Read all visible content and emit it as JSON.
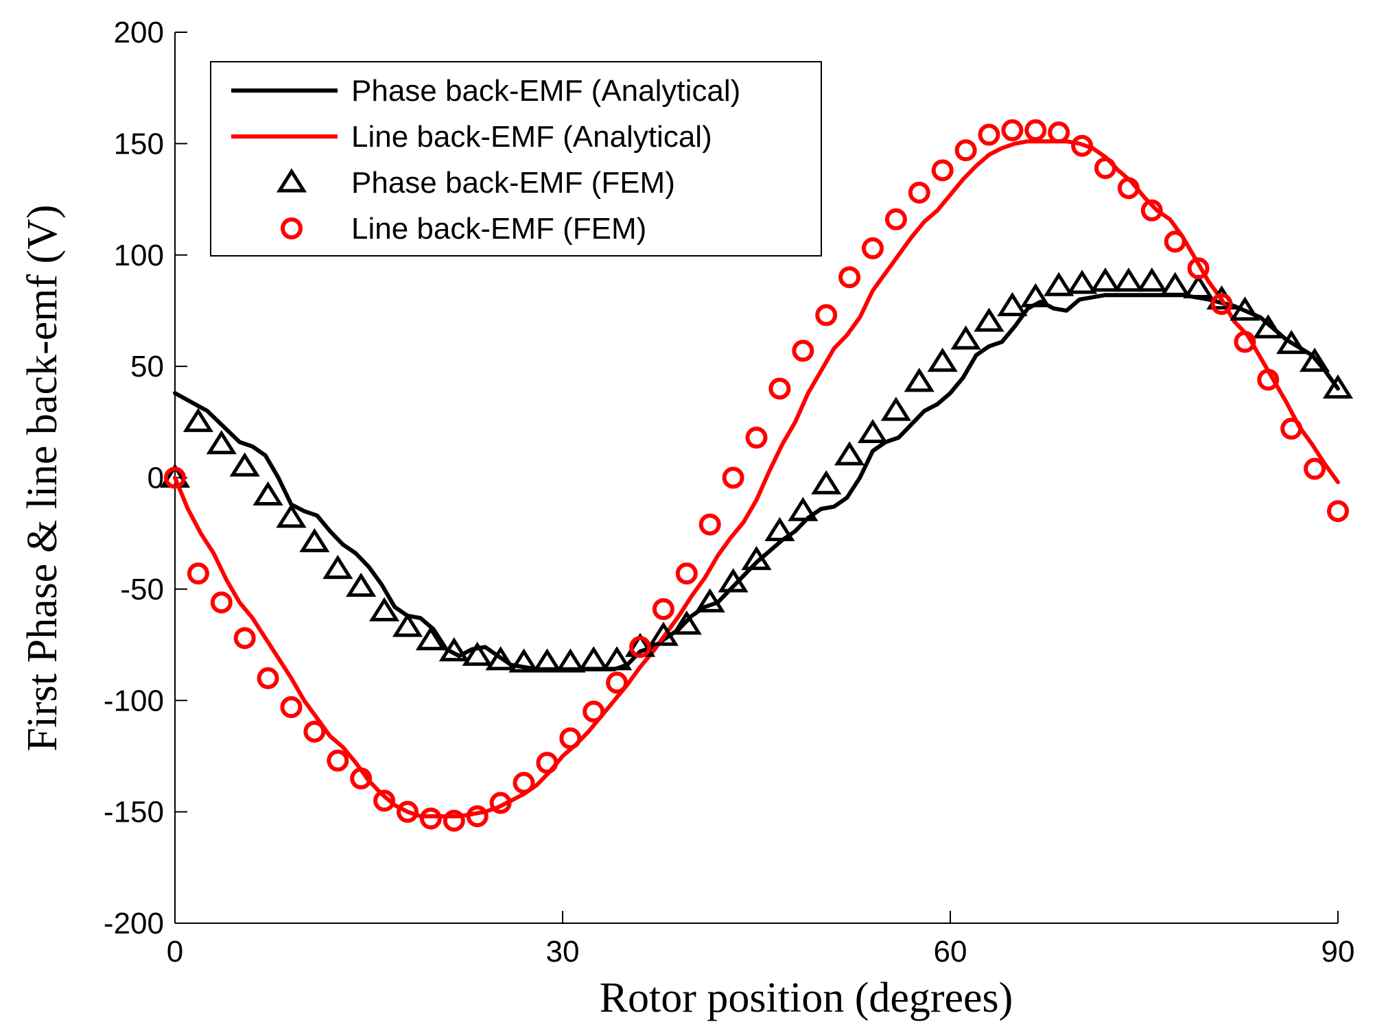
{
  "chart_data": {
    "type": "line",
    "title": "",
    "xlabel": "Rotor position (degrees)",
    "ylabel": "First Phase & line back-emf (V)",
    "xlim": [
      0,
      90
    ],
    "ylim": [
      -200,
      200
    ],
    "xticks": [
      0,
      30,
      60,
      90
    ],
    "xtick_labels": [
      "0",
      "30",
      "60",
      "90"
    ],
    "yticks": [
      -200,
      -150,
      -100,
      -50,
      0,
      50,
      100,
      150,
      200
    ],
    "ytick_labels": [
      "-200",
      "-150",
      "-100",
      "-50",
      "0",
      "50",
      "100",
      "150",
      "200"
    ],
    "grid": false,
    "legend_position": "top-left",
    "series": [
      {
        "name": "Phase back-EMF (Analytical)",
        "style": "line",
        "color": "#000000",
        "x": [
          0,
          2.5,
          5,
          6,
          7,
          8,
          9,
          10,
          11,
          12,
          13,
          14,
          15,
          16,
          17,
          18,
          19,
          20,
          21,
          22,
          23,
          24,
          25,
          26,
          27,
          28,
          30,
          32,
          34,
          35,
          36,
          37,
          38,
          39,
          40,
          41,
          42,
          43,
          44,
          45,
          46,
          47,
          48,
          49,
          50,
          51,
          52,
          53,
          54,
          55,
          56,
          57,
          58,
          59,
          60,
          61,
          62,
          63,
          64,
          65,
          66,
          67,
          68,
          69,
          70,
          72,
          74,
          76,
          78,
          80,
          82,
          84,
          86,
          88,
          89,
          90
        ],
        "values": [
          38,
          30,
          16,
          14,
          10,
          0,
          -12,
          -15,
          -17,
          -24,
          -30,
          -34,
          -40,
          -48,
          -58,
          -62,
          -63,
          -68,
          -77,
          -80,
          -77,
          -76,
          -80,
          -84,
          -85,
          -86,
          -86,
          -86,
          -86,
          -84,
          -78,
          -76,
          -72,
          -68,
          -62,
          -58,
          -56,
          -50,
          -44,
          -38,
          -33,
          -28,
          -24,
          -18,
          -14,
          -13,
          -9,
          0,
          12,
          16,
          18,
          24,
          30,
          33,
          38,
          45,
          55,
          59,
          61,
          68,
          76,
          79,
          76,
          75,
          80,
          82,
          82,
          82,
          82,
          80,
          77,
          72,
          62,
          55,
          48,
          40
        ]
      },
      {
        "name": "Line back-EMF (Analytical)",
        "style": "line",
        "color": "#ff0000",
        "x": [
          0,
          1,
          2,
          3,
          4,
          5,
          6,
          7,
          8,
          9,
          10,
          11,
          12,
          13,
          14,
          15,
          16,
          17,
          18,
          19,
          20,
          21,
          22,
          23,
          24,
          25,
          26,
          27,
          28,
          29,
          30,
          31,
          32,
          33,
          34,
          35,
          36,
          37,
          38,
          39,
          40,
          41,
          42,
          43,
          44,
          45,
          46,
          47,
          48,
          49,
          50,
          51,
          52,
          53,
          54,
          55,
          56,
          57,
          58,
          59,
          60,
          61,
          62,
          63,
          64,
          65,
          66,
          67,
          68,
          69,
          70,
          71,
          72,
          73,
          74,
          75,
          76,
          77,
          78,
          79,
          80,
          81,
          82,
          83,
          84,
          85,
          86,
          87,
          88,
          89,
          90
        ],
        "values": [
          0,
          -14,
          -25,
          -34,
          -46,
          -56,
          -63,
          -72,
          -81,
          -90,
          -100,
          -108,
          -116,
          -121,
          -128,
          -136,
          -142,
          -147,
          -150,
          -152,
          -152,
          -152,
          -152,
          -151,
          -150,
          -148,
          -145,
          -142,
          -138,
          -132,
          -125,
          -120,
          -114,
          -107,
          -100,
          -93,
          -85,
          -78,
          -70,
          -62,
          -53,
          -45,
          -35,
          -27,
          -20,
          -10,
          3,
          15,
          25,
          38,
          48,
          58,
          64,
          72,
          84,
          92,
          100,
          108,
          115,
          120,
          127,
          134,
          140,
          145,
          148,
          150,
          151,
          151,
          151,
          151,
          150,
          148,
          144,
          138,
          133,
          126,
          120,
          116,
          108,
          98,
          88,
          80,
          70,
          64,
          54,
          44,
          34,
          23,
          15,
          6,
          -2
        ]
      },
      {
        "name": "Phase back-EMF (FEM)",
        "style": "markers",
        "marker": "triangle",
        "color": "#000000",
        "x": [
          0,
          1.8,
          3.6,
          5.4,
          7.2,
          9,
          10.8,
          12.6,
          14.4,
          16.2,
          18,
          19.8,
          21.6,
          23.4,
          25.2,
          27,
          28.8,
          30.6,
          32.4,
          34.2,
          36,
          37.8,
          39.6,
          41.4,
          43.2,
          45,
          46.8,
          48.6,
          50.4,
          52.2,
          54,
          55.8,
          57.6,
          59.4,
          61.2,
          63,
          64.8,
          66.6,
          68.4,
          70.2,
          72,
          73.8,
          75.6,
          77.4,
          79.2,
          81,
          82.8,
          84.6,
          86.4,
          88.2,
          90
        ],
        "values": [
          0,
          25,
          15,
          5,
          -8,
          -18,
          -29,
          -41,
          -49,
          -60,
          -67,
          -73,
          -78,
          -80,
          -82,
          -83,
          -83,
          -83,
          -82,
          -82,
          -76,
          -71,
          -66,
          -56,
          -47,
          -37,
          -24,
          -15,
          -3,
          10,
          20,
          30,
          43,
          52,
          62,
          70,
          77,
          81,
          86,
          87,
          88,
          88,
          88,
          86,
          85,
          80,
          75,
          67,
          60,
          52,
          40
        ]
      },
      {
        "name": "Line back-EMF (FEM)",
        "style": "markers",
        "marker": "circle",
        "color": "#ff0000",
        "x": [
          0,
          1.8,
          3.6,
          5.4,
          7.2,
          9,
          10.8,
          12.6,
          14.4,
          16.2,
          18,
          19.8,
          21.6,
          23.4,
          25.2,
          27,
          28.8,
          30.6,
          32.4,
          34.2,
          36,
          37.8,
          39.6,
          41.4,
          43.2,
          45,
          46.8,
          48.6,
          50.4,
          52.2,
          54,
          55.8,
          57.6,
          59.4,
          61.2,
          63,
          64.8,
          66.6,
          68.4,
          70.2,
          72,
          73.8,
          75.6,
          77.4,
          79.2,
          81,
          82.8,
          84.6,
          86.4,
          88.2,
          90
        ],
        "values": [
          0,
          -43,
          -56,
          -72,
          -90,
          -103,
          -114,
          -127,
          -135,
          -145,
          -150,
          -153,
          -154,
          -152,
          -146,
          -137,
          -128,
          -117,
          -105,
          -92,
          -76,
          -59,
          -43,
          -21,
          0,
          18,
          40,
          57,
          73,
          90,
          103,
          116,
          128,
          138,
          147,
          154,
          156,
          156,
          155,
          149,
          139,
          130,
          120,
          106,
          94,
          78,
          61,
          44,
          22,
          4,
          -15
        ]
      }
    ]
  }
}
